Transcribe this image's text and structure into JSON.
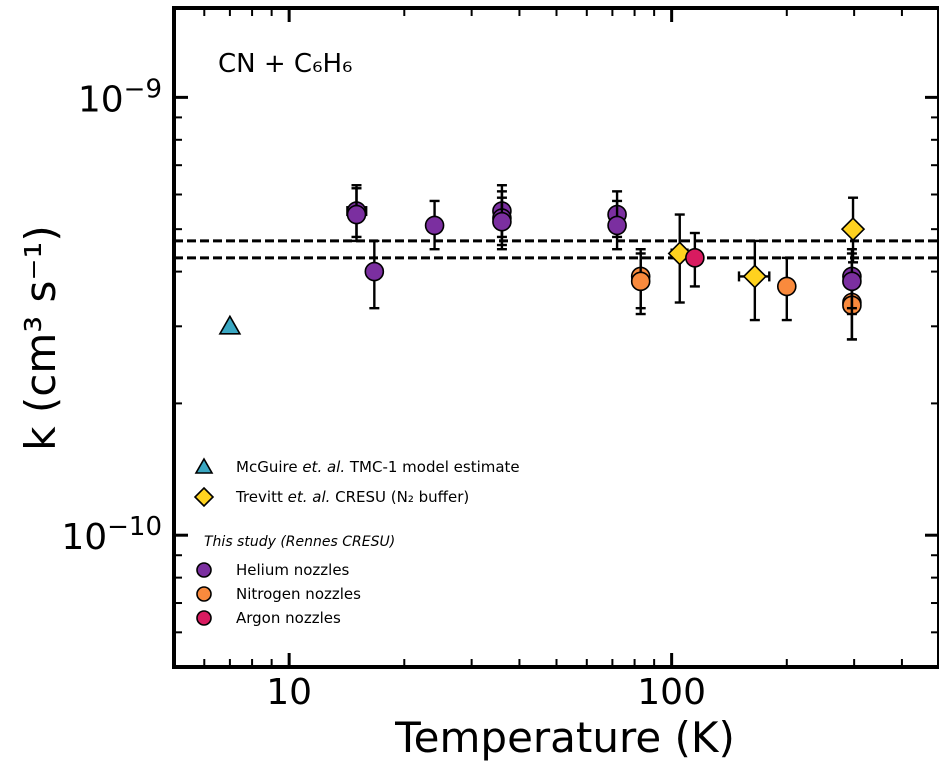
{
  "chart_data": {
    "type": "scatter",
    "x_scale": "log",
    "y_scale": "log",
    "xlim": [
      5,
      500
    ],
    "ylim": [
      5e-11,
      1.6e-09
    ],
    "xlabel": "Temperature (K)",
    "ylabel": "k (cm³ s⁻¹)",
    "annotation": "CN + C₆H₆",
    "x_ticks": [
      {
        "value": 10,
        "label": "10"
      },
      {
        "value": 100,
        "label": "100"
      }
    ],
    "y_ticks": [
      {
        "value": 1e-10,
        "label": "10",
        "exp": "−10"
      },
      {
        "value": 1e-09,
        "label": "10",
        "exp": "−9"
      }
    ],
    "reference_lines": [
      4.7e-10,
      4.3e-10
    ],
    "series": [
      {
        "name": "Helium nozzles",
        "group": "This study (Rennes CRESU)",
        "marker": "circle",
        "color": "#7b2fa0",
        "points": [
          {
            "x": 15,
            "y": 5.5e-10,
            "ylo": 4.8e-10,
            "yhi": 6.3e-10,
            "xlo": 14.2,
            "xhi": 15.9
          },
          {
            "x": 15,
            "y": 5.4e-10,
            "ylo": 4.7e-10,
            "yhi": 6.2e-10
          },
          {
            "x": 16.7,
            "y": 4e-10,
            "ylo": 3.3e-10,
            "yhi": 4.7e-10,
            "xlo": 16.0,
            "xhi": 17.4
          },
          {
            "x": 24,
            "y": 5.1e-10,
            "ylo": 4.5e-10,
            "yhi": 5.8e-10
          },
          {
            "x": 36,
            "y": 5.5e-10,
            "ylo": 4.8e-10,
            "yhi": 6.3e-10
          },
          {
            "x": 36,
            "y": 5.3e-10,
            "ylo": 4.6e-10,
            "yhi": 6.1e-10
          },
          {
            "x": 36,
            "y": 5.2e-10,
            "ylo": 4.5e-10,
            "yhi": 5.9e-10
          },
          {
            "x": 72,
            "y": 5.4e-10,
            "ylo": 4.8e-10,
            "yhi": 6.1e-10
          },
          {
            "x": 72,
            "y": 5.1e-10,
            "ylo": 4.5e-10,
            "yhi": 5.8e-10
          },
          {
            "x": 296,
            "y": 3.9e-10,
            "ylo": 3.3e-10,
            "yhi": 4.5e-10
          },
          {
            "x": 296,
            "y": 3.8e-10,
            "ylo": 3.2e-10,
            "yhi": 4.4e-10
          }
        ]
      },
      {
        "name": "Nitrogen nozzles",
        "group": "This study (Rennes CRESU)",
        "marker": "circle",
        "color": "#f98a3d",
        "points": [
          {
            "x": 83,
            "y": 3.9e-10,
            "ylo": 3.3e-10,
            "yhi": 4.5e-10
          },
          {
            "x": 83,
            "y": 3.8e-10,
            "ylo": 3.2e-10,
            "yhi": 4.4e-10
          },
          {
            "x": 200,
            "y": 3.7e-10,
            "ylo": 3.1e-10,
            "yhi": 4.3e-10
          },
          {
            "x": 296,
            "y": 3.4e-10,
            "ylo": 2.8e-10,
            "yhi": 4e-10
          },
          {
            "x": 296,
            "y": 3.35e-10,
            "ylo": 2.8e-10,
            "yhi": 3.9e-10
          }
        ]
      },
      {
        "name": "Argon nozzles",
        "group": "This study (Rennes CRESU)",
        "marker": "circle",
        "color": "#d81b60",
        "points": [
          {
            "x": 115,
            "y": 4.3e-10,
            "ylo": 3.7e-10,
            "yhi": 4.9e-10
          }
        ]
      },
      {
        "name": "Trevitt et. al. CRESU (N₂ buffer)",
        "marker": "diamond",
        "color": "#ffd21f",
        "points": [
          {
            "x": 105,
            "y": 4.4e-10,
            "ylo": 3.4e-10,
            "yhi": 5.4e-10,
            "xlo": 100,
            "xhi": 110
          },
          {
            "x": 165,
            "y": 3.9e-10,
            "ylo": 3.1e-10,
            "yhi": 4.7e-10,
            "xlo": 150,
            "xhi": 180
          },
          {
            "x": 298,
            "y": 5e-10,
            "ylo": 4.2e-10,
            "yhi": 5.9e-10
          }
        ]
      },
      {
        "name": "McGuire et. al. TMC-1 model estimate",
        "marker": "triangle",
        "color": "#3aa7c2",
        "points": [
          {
            "x": 7,
            "y": 3e-10
          }
        ]
      }
    ],
    "legend": {
      "placement": "lower-left",
      "entries": [
        {
          "marker": "triangle",
          "color": "#3aa7c2",
          "pre": "McGuire ",
          "em": "et. al.",
          "post": "  TMC-1 model estimate"
        },
        {
          "marker": "diamond",
          "color": "#ffd21f",
          "pre": "Trevitt ",
          "em": "et. al.",
          "post": "  CRESU (N₂ buffer)"
        }
      ],
      "group_title": "This study (Rennes CRESU)",
      "group_entries": [
        {
          "marker": "circle",
          "color": "#7b2fa0",
          "label": "Helium nozzles"
        },
        {
          "marker": "circle",
          "color": "#f98a3d",
          "label": "Nitrogen nozzles"
        },
        {
          "marker": "circle",
          "color": "#d81b60",
          "label": "Argon nozzles"
        }
      ]
    }
  }
}
